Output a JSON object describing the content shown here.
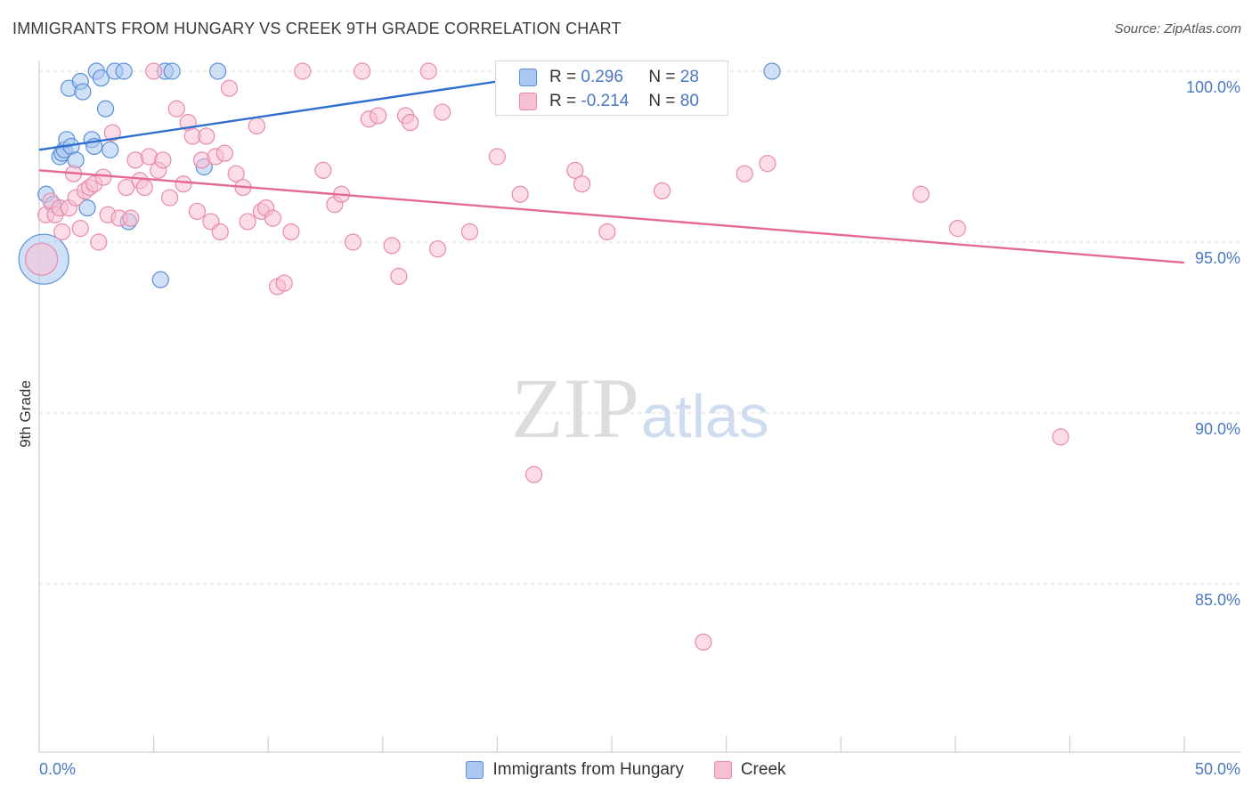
{
  "chart_data": {
    "type": "scatter",
    "title": "IMMIGRANTS FROM HUNGARY VS CREEK 9TH GRADE CORRELATION CHART",
    "source": "Source: ZipAtlas.com",
    "xlabel": "",
    "ylabel": "9th Grade",
    "xlim": [
      0,
      50
    ],
    "ylim": [
      80.5,
      101
    ],
    "x_tick_labels": [
      "0.0%",
      "50.0%"
    ],
    "y_ticks": [
      {
        "value": 100,
        "label": "100.0%"
      },
      {
        "value": 95,
        "label": "95.0%"
      },
      {
        "value": 90,
        "label": "90.0%"
      },
      {
        "value": 85,
        "label": "85.0%"
      }
    ],
    "grid": true,
    "watermark": {
      "zip": "ZIP",
      "atlas": "atlas"
    },
    "legend_stats": [
      {
        "r_label": "R =",
        "r_value": "0.296",
        "n_label": "N =",
        "n_value": "28"
      },
      {
        "r_label": "R =",
        "r_value": "-0.214",
        "n_label": "N =",
        "n_value": "80"
      }
    ],
    "series": [
      {
        "name": "Immigrants from Hungary",
        "fill": "#a9c7f0",
        "stroke": "#5a8fd8",
        "line_color": "#2f6fcf",
        "trend": [
          [
            0,
            97.7
          ],
          [
            25,
            100.2
          ]
        ],
        "points": [
          [
            0.2,
            94.5,
            28
          ],
          [
            0.3,
            96.4,
            9
          ],
          [
            0.6,
            96.1,
            9
          ],
          [
            0.9,
            97.5,
            9
          ],
          [
            1.0,
            97.6,
            9
          ],
          [
            1.1,
            97.7,
            9
          ],
          [
            1.2,
            98.0,
            9
          ],
          [
            1.4,
            97.8,
            9
          ],
          [
            1.3,
            99.5,
            9
          ],
          [
            1.6,
            97.4,
            9
          ],
          [
            1.8,
            99.7,
            9
          ],
          [
            1.9,
            99.4,
            9
          ],
          [
            2.3,
            98.0,
            9
          ],
          [
            2.4,
            97.8,
            9
          ],
          [
            2.5,
            100.0,
            9
          ],
          [
            2.7,
            99.8,
            9
          ],
          [
            2.9,
            98.9,
            9
          ],
          [
            3.1,
            97.7,
            9
          ],
          [
            3.3,
            100.0,
            9
          ],
          [
            3.7,
            100.0,
            9
          ],
          [
            3.9,
            95.6,
            9
          ],
          [
            5.5,
            100.0,
            9
          ],
          [
            5.8,
            100.0,
            9
          ],
          [
            2.1,
            96.0,
            9
          ],
          [
            5.3,
            93.9,
            9
          ],
          [
            7.2,
            97.2,
            9
          ],
          [
            7.8,
            100.0,
            9
          ],
          [
            32.0,
            100.0,
            9
          ]
        ]
      },
      {
        "name": "Creek",
        "fill": "#f7bfd3",
        "stroke": "#e88aab",
        "line_color": "#e46a94",
        "trend": [
          [
            0,
            97.1
          ],
          [
            50,
            94.4
          ]
        ],
        "points": [
          [
            0.1,
            94.5,
            18
          ],
          [
            0.3,
            95.8,
            9
          ],
          [
            0.5,
            96.2,
            9
          ],
          [
            0.7,
            95.8,
            9
          ],
          [
            0.9,
            96.0,
            9
          ],
          [
            1.0,
            95.3,
            9
          ],
          [
            1.3,
            96.0,
            9
          ],
          [
            1.5,
            97.0,
            9
          ],
          [
            1.6,
            96.3,
            9
          ],
          [
            1.8,
            95.4,
            9
          ],
          [
            2.0,
            96.5,
            9
          ],
          [
            2.2,
            96.6,
            9
          ],
          [
            2.4,
            96.7,
            9
          ],
          [
            2.6,
            95.0,
            9
          ],
          [
            2.8,
            96.9,
            9
          ],
          [
            3.0,
            95.8,
            9
          ],
          [
            3.2,
            98.2,
            9
          ],
          [
            3.5,
            95.7,
            9
          ],
          [
            3.8,
            96.6,
            9
          ],
          [
            4.0,
            95.7,
            9
          ],
          [
            4.2,
            97.4,
            9
          ],
          [
            4.4,
            96.8,
            9
          ],
          [
            4.6,
            96.6,
            9
          ],
          [
            4.8,
            97.5,
            9
          ],
          [
            5.0,
            100.0,
            9
          ],
          [
            5.2,
            97.1,
            9
          ],
          [
            5.4,
            97.4,
            9
          ],
          [
            5.7,
            96.3,
            9
          ],
          [
            6.0,
            98.9,
            9
          ],
          [
            6.3,
            96.7,
            9
          ],
          [
            6.5,
            98.5,
            9
          ],
          [
            6.7,
            98.1,
            9
          ],
          [
            6.9,
            95.9,
            9
          ],
          [
            7.1,
            97.4,
            9
          ],
          [
            7.3,
            98.1,
            9
          ],
          [
            7.5,
            95.6,
            9
          ],
          [
            7.7,
            97.5,
            9
          ],
          [
            7.9,
            95.3,
            9
          ],
          [
            8.1,
            97.6,
            9
          ],
          [
            8.3,
            99.5,
            9
          ],
          [
            8.6,
            97.0,
            9
          ],
          [
            8.9,
            96.6,
            9
          ],
          [
            9.1,
            95.6,
            9
          ],
          [
            9.5,
            98.4,
            9
          ],
          [
            9.7,
            95.9,
            9
          ],
          [
            9.9,
            96.0,
            9
          ],
          [
            10.2,
            95.7,
            9
          ],
          [
            10.4,
            93.7,
            9
          ],
          [
            10.7,
            93.8,
            9
          ],
          [
            11.0,
            95.3,
            9
          ],
          [
            11.5,
            100.0,
            9
          ],
          [
            12.4,
            97.1,
            9
          ],
          [
            12.9,
            96.1,
            9
          ],
          [
            13.2,
            96.4,
            9
          ],
          [
            13.7,
            95.0,
            9
          ],
          [
            14.1,
            100.0,
            9
          ],
          [
            14.4,
            98.6,
            9
          ],
          [
            14.8,
            98.7,
            9
          ],
          [
            15.4,
            94.9,
            9
          ],
          [
            15.7,
            94.0,
            9
          ],
          [
            16.0,
            98.7,
            9
          ],
          [
            16.2,
            98.5,
            9
          ],
          [
            17.0,
            100.0,
            9
          ],
          [
            17.4,
            94.8,
            9
          ],
          [
            17.6,
            98.8,
            9
          ],
          [
            18.8,
            95.3,
            9
          ],
          [
            20.0,
            97.5,
            9
          ],
          [
            21.0,
            96.4,
            9
          ],
          [
            21.6,
            88.2,
            9
          ],
          [
            22.3,
            100.0,
            9
          ],
          [
            23.4,
            97.1,
            9
          ],
          [
            23.7,
            96.7,
            9
          ],
          [
            24.8,
            95.3,
            9
          ],
          [
            27.2,
            96.5,
            9
          ],
          [
            29.0,
            83.3,
            9
          ],
          [
            30.8,
            97.0,
            9
          ],
          [
            31.8,
            97.3,
            9
          ],
          [
            38.5,
            96.4,
            9
          ],
          [
            40.1,
            95.4,
            9
          ],
          [
            44.6,
            89.3,
            9
          ]
        ]
      }
    ]
  }
}
